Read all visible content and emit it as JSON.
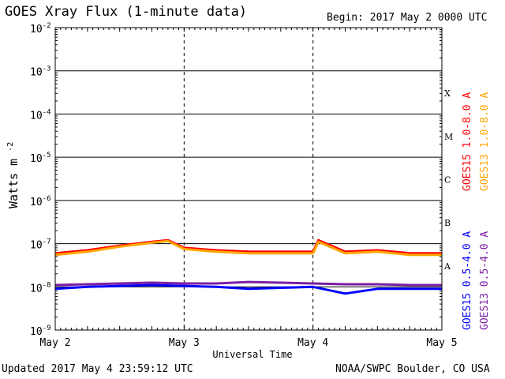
{
  "header": {
    "title": "GOES Xray Flux (1-minute data)",
    "begin": "Begin:  2017 May 2 0000 UTC"
  },
  "footer": {
    "updated": "Updated 2017 May  4 23:59:12 UTC",
    "credit": "NOAA/SWPC Boulder, CO USA"
  },
  "chart_data": {
    "type": "line",
    "title": "GOES Xray Flux (1-minute data)",
    "xlabel": "Universal Time",
    "ylabel": "Watts m",
    "ylabel_sup": "-2",
    "yscale": "log",
    "ylim": [
      1e-09,
      0.01
    ],
    "xlim": [
      "2017-05-02 00:00",
      "2017-05-05 00:00"
    ],
    "x_ticks": [
      "May 2",
      "May 3",
      "May 4",
      "May 5"
    ],
    "y_ticks": [
      {
        "base": "10",
        "exp": "-9"
      },
      {
        "base": "10",
        "exp": "-8"
      },
      {
        "base": "10",
        "exp": "-7"
      },
      {
        "base": "10",
        "exp": "-6"
      },
      {
        "base": "10",
        "exp": "-5"
      },
      {
        "base": "10",
        "exp": "-4"
      },
      {
        "base": "10",
        "exp": "-3"
      },
      {
        "base": "10",
        "exp": "-2"
      }
    ],
    "flare_classes": [
      "A",
      "B",
      "C",
      "M",
      "X"
    ],
    "grid": "horizontal lines at each decade; dashed vertical lines at day boundaries",
    "series": [
      {
        "name": "GOES15 1.0-8.0 A",
        "color": "#ff0000",
        "x": [
          "2017-05-02 00:00",
          "2017-05-02 06:00",
          "2017-05-02 12:00",
          "2017-05-02 18:00",
          "2017-05-02 21:00",
          "2017-05-03 00:00",
          "2017-05-03 06:00",
          "2017-05-03 12:00",
          "2017-05-03 18:00",
          "2017-05-04 00:00",
          "2017-05-04 01:00",
          "2017-05-04 06:00",
          "2017-05-04 12:00",
          "2017-05-04 18:00",
          "2017-05-05 00:00"
        ],
        "values": [
          6e-08,
          7e-08,
          9e-08,
          1.1e-07,
          1.2e-07,
          8e-08,
          7e-08,
          6.5e-08,
          6.5e-08,
          6.5e-08,
          1.2e-07,
          6.5e-08,
          7e-08,
          6e-08,
          6e-08
        ]
      },
      {
        "name": "GOES13 1.0-8.0 A",
        "color": "#ffa500",
        "x": [
          "2017-05-02 00:00",
          "2017-05-02 06:00",
          "2017-05-02 12:00",
          "2017-05-02 18:00",
          "2017-05-02 21:00",
          "2017-05-03 00:00",
          "2017-05-03 06:00",
          "2017-05-03 12:00",
          "2017-05-03 18:00",
          "2017-05-04 00:00",
          "2017-05-04 01:00",
          "2017-05-04 06:00",
          "2017-05-04 12:00",
          "2017-05-04 18:00",
          "2017-05-05 00:00"
        ],
        "values": [
          5.5e-08,
          6.5e-08,
          8.5e-08,
          1.05e-07,
          1.15e-07,
          7.5e-08,
          6.5e-08,
          6e-08,
          6e-08,
          6e-08,
          1.1e-07,
          6e-08,
          6.5e-08,
          5.5e-08,
          5.5e-08
        ]
      },
      {
        "name": "GOES15 0.5-4.0 A",
        "color": "#0000ff",
        "x": [
          "2017-05-02 00:00",
          "2017-05-02 06:00",
          "2017-05-02 12:00",
          "2017-05-02 18:00",
          "2017-05-03 00:00",
          "2017-05-03 06:00",
          "2017-05-03 12:00",
          "2017-05-03 18:00",
          "2017-05-04 00:00",
          "2017-05-04 06:00",
          "2017-05-04 12:00",
          "2017-05-04 18:00",
          "2017-05-05 00:00"
        ],
        "values": [
          9e-09,
          1e-08,
          1.05e-08,
          1.1e-08,
          1.05e-08,
          1e-08,
          9e-09,
          9.5e-09,
          1e-08,
          7e-09,
          9e-09,
          9e-09,
          9e-09
        ]
      },
      {
        "name": "GOES13 0.5-4.0 A",
        "color": "#7b1fa2",
        "x": [
          "2017-05-02 00:00",
          "2017-05-02 06:00",
          "2017-05-02 12:00",
          "2017-05-02 18:00",
          "2017-05-03 00:00",
          "2017-05-03 06:00",
          "2017-05-03 12:00",
          "2017-05-03 18:00",
          "2017-05-04 00:00",
          "2017-05-04 06:00",
          "2017-05-04 12:00",
          "2017-05-04 18:00",
          "2017-05-05 00:00"
        ],
        "values": [
          1.1e-08,
          1.15e-08,
          1.2e-08,
          1.25e-08,
          1.2e-08,
          1.2e-08,
          1.3e-08,
          1.25e-08,
          1.2e-08,
          1.15e-08,
          1.15e-08,
          1.1e-08,
          1.1e-08
        ]
      }
    ]
  }
}
